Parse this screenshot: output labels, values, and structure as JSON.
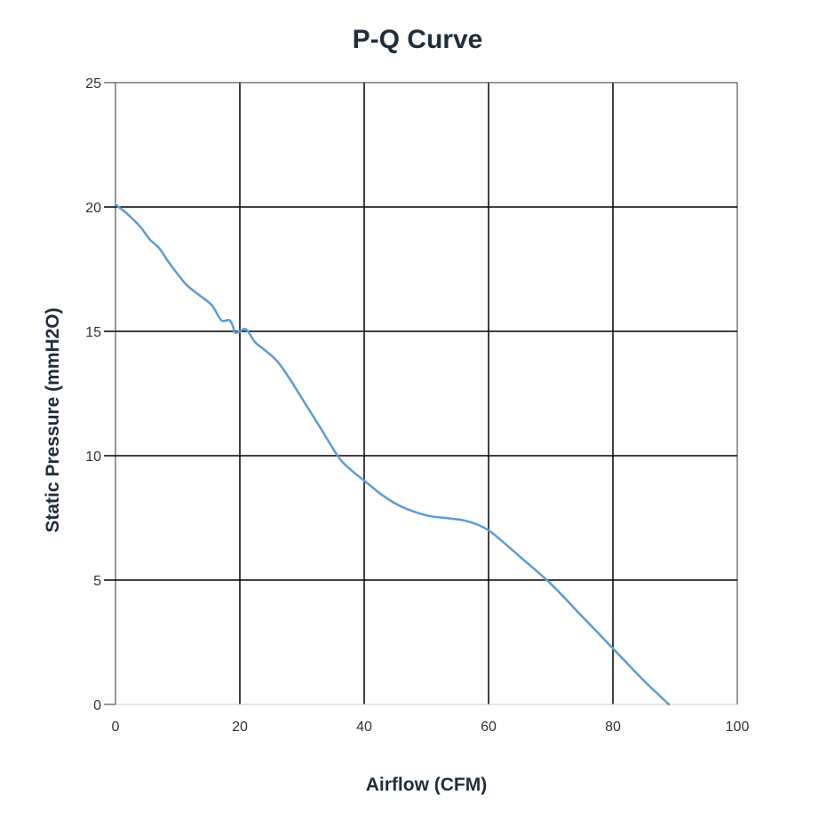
{
  "chart_data": {
    "type": "line",
    "title": "P-Q Curve",
    "xlabel": "Airflow (CFM)",
    "ylabel": "Static Pressure (mmH2O)",
    "xlim": [
      0,
      100
    ],
    "ylim": [
      0,
      25
    ],
    "xticks": [
      "0",
      "20",
      "40",
      "60",
      "80",
      "100"
    ],
    "yticks": [
      "0",
      "5",
      "10",
      "15",
      "20",
      "25"
    ],
    "grid": true,
    "line_color": "#5b9bd5",
    "series": [
      {
        "x": [
          0,
          2,
          4,
          5.5,
          7,
          8.5,
          10,
          11.5,
          13.5,
          15.5,
          17,
          18.3,
          18.9,
          19.2,
          20,
          20.7,
          21.3,
          22.5,
          24,
          26,
          28,
          30,
          33,
          36,
          38,
          40,
          43,
          46,
          50,
          53,
          56,
          58,
          60,
          62,
          65,
          70,
          75,
          80,
          85,
          89
        ],
        "y": [
          20.1,
          19.7,
          19.2,
          18.7,
          18.35,
          17.8,
          17.3,
          16.85,
          16.45,
          16.05,
          15.45,
          15.45,
          15.2,
          14.95,
          15.0,
          15.1,
          15.0,
          14.55,
          14.25,
          13.8,
          13.1,
          12.3,
          11.1,
          9.9,
          9.4,
          9.0,
          8.4,
          7.95,
          7.6,
          7.5,
          7.4,
          7.25,
          7.0,
          6.6,
          5.95,
          4.85,
          3.55,
          2.25,
          0.95,
          0
        ]
      }
    ]
  }
}
